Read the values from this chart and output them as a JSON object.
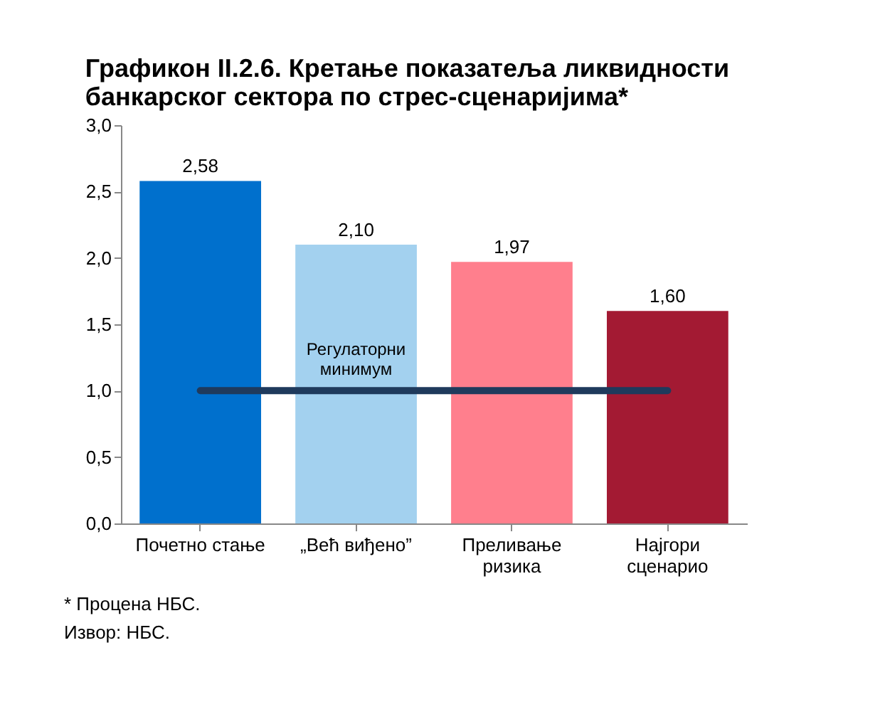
{
  "chart_data": {
    "type": "bar",
    "title": "Графикон II.2.6. Кретање показатеља ликвидности банкарског сектора по стрес-сценаријима*",
    "categories": [
      "Почетно стање",
      "„Већ виђено”",
      "Преливање\nризика",
      "Најгори\nсценарио"
    ],
    "values": [
      2.58,
      2.1,
      1.97,
      1.6
    ],
    "colors": [
      "#0070cd",
      "#a3d1ef",
      "#ff7f8d",
      "#a31a33"
    ],
    "value_labels": [
      "2,58",
      "2,10",
      "1,97",
      "1,60"
    ],
    "ylim": [
      0,
      3
    ],
    "yticks": [
      {
        "value": 0,
        "label": "0,0"
      },
      {
        "value": 0.5,
        "label": "0,5"
      },
      {
        "value": 1,
        "label": "1,0"
      },
      {
        "value": 1.5,
        "label": "1,5"
      },
      {
        "value": 2,
        "label": "2,0"
      },
      {
        "value": 2.5,
        "label": "2,5"
      },
      {
        "value": 3,
        "label": "3,0"
      }
    ],
    "ref_lines": [
      {
        "axis": "y",
        "value": 1.0,
        "label": "Регулаторни минимум",
        "color": "#1f3a5c"
      }
    ],
    "annotations": [
      "* Процена НБС.",
      "Извор: НБС."
    ],
    "grid": false
  }
}
